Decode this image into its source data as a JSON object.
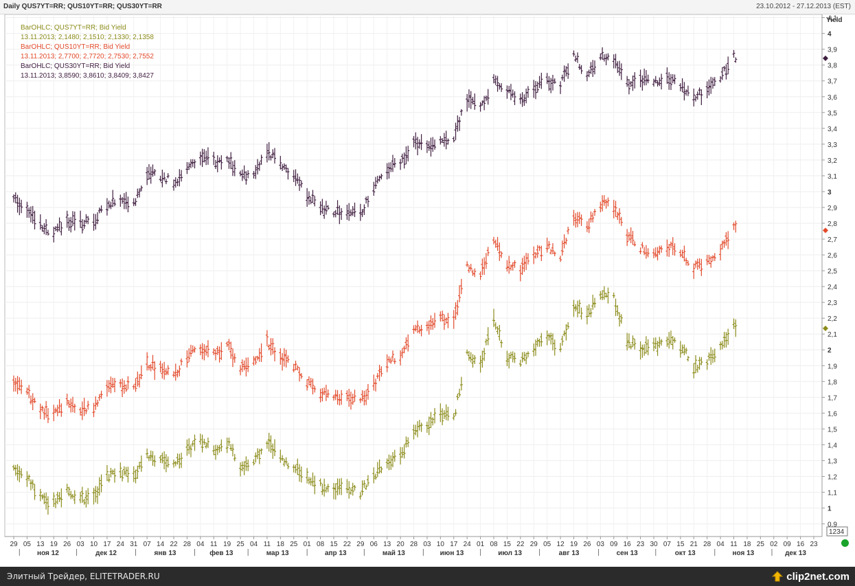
{
  "header": {
    "title": "Daily QUS7YT=RR; QUS10YT=RR; QUS30YT=RR",
    "date_range": "23.10.2012 - 27.12.2013 (EST)"
  },
  "footer": {
    "text": "Элитный Трейдер, ELITETRADER.RU",
    "brand": "clip2net.com"
  },
  "legend": [
    {
      "label": "BarOHLC; QUS7YT=RR; Bid Yield",
      "values": "13.11.2013; 2,1480; 2,1510; 2,1330; 2,1358",
      "color": "#8b8b1a"
    },
    {
      "label": "BarOHLC; QUS10YT=RR; Bid Yield",
      "values": "13.11.2013; 2,7700; 2,7720; 2,7530; 2,7552",
      "color": "#e2492a"
    },
    {
      "label": "BarOHLC; QUS30YT=RR; Bid Yield",
      "values": "13.11.2013; 3,8590; 3,8610; 3,8409; 3,8427",
      "color": "#3f1d3f"
    }
  ],
  "y_axis": {
    "label": "Yield",
    "corner_label": "1234",
    "ticks": [
      "4,1",
      "4",
      "3,9",
      "3,8",
      "3,7",
      "3,6",
      "3,5",
      "3,4",
      "3,3",
      "3,2",
      "3,1",
      "3",
      "2,9",
      "2,8",
      "2,7",
      "2,6",
      "2,5",
      "2,4",
      "2,3",
      "2,2",
      "2,1",
      "2",
      "1,9",
      "1,8",
      "1,7",
      "1,6",
      "1,5",
      "1,4",
      "1,3",
      "1,2",
      "1,1",
      "1",
      "0,9"
    ]
  },
  "x_axis": {
    "days": [
      "29",
      "05",
      "13",
      "19",
      "26",
      "03",
      "10",
      "17",
      "24",
      "31",
      "07",
      "14",
      "22",
      "28",
      "04",
      "11",
      "19",
      "25",
      "04",
      "11",
      "18",
      "25",
      "01",
      "08",
      "15",
      "22",
      "29",
      "06",
      "13",
      "20",
      "28",
      "03",
      "10",
      "17",
      "24",
      "01",
      "08",
      "15",
      "22",
      "29",
      "05",
      "12",
      "19",
      "26",
      "03",
      "09",
      "16",
      "23",
      "30",
      "07",
      "15",
      "21",
      "28",
      "04",
      "11",
      "18",
      "25",
      "02",
      "09",
      "16",
      "23"
    ],
    "months": [
      "ноя 12",
      "дек 12",
      "янв 13",
      "фев 13",
      "мар 13",
      "апр 13",
      "май 13",
      "июн 13",
      "июл 13",
      "авг 13",
      "сен 13",
      "окт 13",
      "ноя 13",
      "дек 13"
    ]
  },
  "chart_data": {
    "type": "ohlc_bar",
    "ylabel": "Yield",
    "ylim": [
      0.82,
      4.12
    ],
    "x_range": [
      "2012-10-29",
      "2013-12-23"
    ],
    "series": [
      {
        "name": "QUS30YT=RR",
        "color": "#3f1d3f",
        "last_value": 3.8427,
        "points": [
          [
            "2012-10-29",
            2.95
          ],
          [
            "2012-11-05",
            2.88
          ],
          [
            "2012-11-13",
            2.77
          ],
          [
            "2012-11-19",
            2.75
          ],
          [
            "2012-11-26",
            2.82
          ],
          [
            "2012-12-03",
            2.8
          ],
          [
            "2012-12-10",
            2.82
          ],
          [
            "2012-12-17",
            2.92
          ],
          [
            "2012-12-24",
            2.96
          ],
          [
            "2012-12-31",
            2.92
          ],
          [
            "2013-01-07",
            3.12
          ],
          [
            "2013-01-14",
            3.1
          ],
          [
            "2013-01-22",
            3.06
          ],
          [
            "2013-01-28",
            3.15
          ],
          [
            "2013-02-04",
            3.22
          ],
          [
            "2013-02-11",
            3.19
          ],
          [
            "2013-02-19",
            3.2
          ],
          [
            "2013-02-25",
            3.1
          ],
          [
            "2013-03-04",
            3.12
          ],
          [
            "2013-03-11",
            3.25
          ],
          [
            "2013-03-18",
            3.17
          ],
          [
            "2013-03-25",
            3.1
          ],
          [
            "2013-04-01",
            2.98
          ],
          [
            "2013-04-08",
            2.9
          ],
          [
            "2013-04-15",
            2.88
          ],
          [
            "2013-04-22",
            2.87
          ],
          [
            "2013-04-29",
            2.86
          ],
          [
            "2013-05-06",
            3.02
          ],
          [
            "2013-05-13",
            3.15
          ],
          [
            "2013-05-20",
            3.18
          ],
          [
            "2013-05-28",
            3.32
          ],
          [
            "2013-06-03",
            3.27
          ],
          [
            "2013-06-10",
            3.33
          ],
          [
            "2013-06-17",
            3.35
          ],
          [
            "2013-06-24",
            3.58
          ],
          [
            "2013-07-01",
            3.52
          ],
          [
            "2013-07-08",
            3.7
          ],
          [
            "2013-07-15",
            3.64
          ],
          [
            "2013-07-22",
            3.58
          ],
          [
            "2013-07-29",
            3.65
          ],
          [
            "2013-08-05",
            3.7
          ],
          [
            "2013-08-12",
            3.68
          ],
          [
            "2013-08-19",
            3.86
          ],
          [
            "2013-08-26",
            3.74
          ],
          [
            "2013-09-03",
            3.86
          ],
          [
            "2013-09-09",
            3.84
          ],
          [
            "2013-09-16",
            3.68
          ],
          [
            "2013-09-23",
            3.7
          ],
          [
            "2013-09-30",
            3.7
          ],
          [
            "2013-10-07",
            3.72
          ],
          [
            "2013-10-15",
            3.66
          ],
          [
            "2013-10-21",
            3.6
          ],
          [
            "2013-10-28",
            3.63
          ],
          [
            "2013-11-04",
            3.72
          ],
          [
            "2013-11-11",
            3.85
          ],
          [
            "2013-11-13",
            3.8427
          ]
        ]
      },
      {
        "name": "QUS10YT=RR",
        "color": "#e2492a",
        "last_value": 2.7552,
        "points": [
          [
            "2012-10-29",
            1.8
          ],
          [
            "2012-11-05",
            1.73
          ],
          [
            "2012-11-13",
            1.62
          ],
          [
            "2012-11-19",
            1.59
          ],
          [
            "2012-11-26",
            1.68
          ],
          [
            "2012-12-03",
            1.62
          ],
          [
            "2012-12-10",
            1.63
          ],
          [
            "2012-12-17",
            1.77
          ],
          [
            "2012-12-24",
            1.78
          ],
          [
            "2012-12-31",
            1.76
          ],
          [
            "2013-01-07",
            1.92
          ],
          [
            "2013-01-14",
            1.87
          ],
          [
            "2013-01-22",
            1.85
          ],
          [
            "2013-01-28",
            1.96
          ],
          [
            "2013-02-04",
            2.02
          ],
          [
            "2013-02-11",
            1.97
          ],
          [
            "2013-02-19",
            2.02
          ],
          [
            "2013-02-25",
            1.88
          ],
          [
            "2013-03-04",
            1.92
          ],
          [
            "2013-03-11",
            2.05
          ],
          [
            "2013-03-18",
            1.95
          ],
          [
            "2013-03-25",
            1.9
          ],
          [
            "2013-04-01",
            1.8
          ],
          [
            "2013-04-08",
            1.73
          ],
          [
            "2013-04-15",
            1.71
          ],
          [
            "2013-04-22",
            1.7
          ],
          [
            "2013-04-29",
            1.68
          ],
          [
            "2013-05-06",
            1.78
          ],
          [
            "2013-05-13",
            1.92
          ],
          [
            "2013-05-20",
            1.97
          ],
          [
            "2013-05-28",
            2.13
          ],
          [
            "2013-06-03",
            2.15
          ],
          [
            "2013-06-10",
            2.2
          ],
          [
            "2013-06-17",
            2.18
          ],
          [
            "2013-06-24",
            2.53
          ],
          [
            "2013-07-01",
            2.48
          ],
          [
            "2013-07-08",
            2.7
          ],
          [
            "2013-07-15",
            2.55
          ],
          [
            "2013-07-22",
            2.5
          ],
          [
            "2013-07-29",
            2.6
          ],
          [
            "2013-08-05",
            2.65
          ],
          [
            "2013-08-12",
            2.6
          ],
          [
            "2013-08-19",
            2.85
          ],
          [
            "2013-08-26",
            2.78
          ],
          [
            "2013-09-03",
            2.94
          ],
          [
            "2013-09-09",
            2.9
          ],
          [
            "2013-09-16",
            2.72
          ],
          [
            "2013-09-23",
            2.65
          ],
          [
            "2013-09-30",
            2.62
          ],
          [
            "2013-10-07",
            2.66
          ],
          [
            "2013-10-15",
            2.6
          ],
          [
            "2013-10-21",
            2.52
          ],
          [
            "2013-10-28",
            2.55
          ],
          [
            "2013-11-04",
            2.63
          ],
          [
            "2013-11-11",
            2.76
          ],
          [
            "2013-11-13",
            2.7552
          ]
        ]
      },
      {
        "name": "QUS7YT=RR",
        "color": "#8b8b1a",
        "last_value": 2.1358,
        "points": [
          [
            "2012-10-29",
            1.27
          ],
          [
            "2012-11-05",
            1.19
          ],
          [
            "2012-11-13",
            1.05
          ],
          [
            "2012-11-19",
            1.03
          ],
          [
            "2012-11-26",
            1.1
          ],
          [
            "2012-12-03",
            1.06
          ],
          [
            "2012-12-10",
            1.06
          ],
          [
            "2012-12-17",
            1.2
          ],
          [
            "2012-12-24",
            1.23
          ],
          [
            "2012-12-31",
            1.2
          ],
          [
            "2013-01-07",
            1.33
          ],
          [
            "2013-01-14",
            1.31
          ],
          [
            "2013-01-22",
            1.28
          ],
          [
            "2013-01-28",
            1.37
          ],
          [
            "2013-02-04",
            1.42
          ],
          [
            "2013-02-11",
            1.37
          ],
          [
            "2013-02-19",
            1.4
          ],
          [
            "2013-02-25",
            1.26
          ],
          [
            "2013-03-04",
            1.29
          ],
          [
            "2013-03-11",
            1.42
          ],
          [
            "2013-03-18",
            1.31
          ],
          [
            "2013-03-25",
            1.27
          ],
          [
            "2013-04-01",
            1.19
          ],
          [
            "2013-04-08",
            1.14
          ],
          [
            "2013-04-15",
            1.12
          ],
          [
            "2013-04-22",
            1.12
          ],
          [
            "2013-04-29",
            1.1
          ],
          [
            "2013-05-06",
            1.21
          ],
          [
            "2013-05-13",
            1.3
          ],
          [
            "2013-05-20",
            1.33
          ],
          [
            "2013-05-28",
            1.51
          ],
          [
            "2013-06-03",
            1.52
          ],
          [
            "2013-06-10",
            1.59
          ],
          [
            "2013-06-17",
            1.57
          ],
          [
            "2013-06-24",
            1.98
          ],
          [
            "2013-07-01",
            1.92
          ],
          [
            "2013-07-08",
            2.18
          ],
          [
            "2013-07-15",
            1.96
          ],
          [
            "2013-07-22",
            1.92
          ],
          [
            "2013-07-29",
            2.02
          ],
          [
            "2013-08-05",
            2.07
          ],
          [
            "2013-08-12",
            2.0
          ],
          [
            "2013-08-19",
            2.28
          ],
          [
            "2013-08-26",
            2.22
          ],
          [
            "2013-09-03",
            2.37
          ],
          [
            "2013-09-09",
            2.33
          ],
          [
            "2013-09-16",
            2.06
          ],
          [
            "2013-09-23",
            2.0
          ],
          [
            "2013-09-30",
            2.02
          ],
          [
            "2013-10-07",
            2.07
          ],
          [
            "2013-10-15",
            2.02
          ],
          [
            "2013-10-21",
            1.89
          ],
          [
            "2013-10-28",
            1.92
          ],
          [
            "2013-11-04",
            2.02
          ],
          [
            "2013-11-11",
            2.15
          ],
          [
            "2013-11-13",
            2.1358
          ]
        ]
      }
    ]
  }
}
